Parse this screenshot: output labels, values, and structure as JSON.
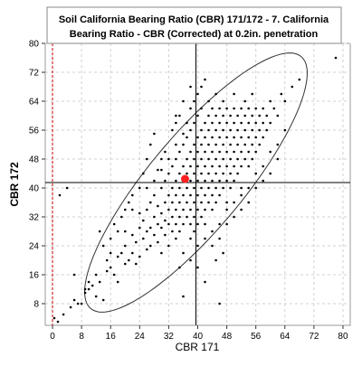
{
  "chart_data": {
    "type": "scatter",
    "title": "Soil California Bearing Ratio (CBR) 171/172 - 7. California Bearing Ratio - CBR (Corrected) at 0.2in. penetration",
    "title_lines": [
      "Soil California Bearing Ratio (CBR) 171/172 - 7. California",
      "Bearing Ratio - CBR (Corrected) at 0.2in. penetration"
    ],
    "xlabel": "CBR 171",
    "ylabel": "CBR 172",
    "xlim": [
      -2,
      82
    ],
    "ylim": [
      2,
      80
    ],
    "xticks": [
      0,
      8,
      16,
      24,
      32,
      40,
      48,
      56,
      64,
      72,
      80
    ],
    "yticks": [
      8,
      16,
      24,
      32,
      40,
      48,
      56,
      64,
      72,
      80
    ],
    "grid": true,
    "legend": "none",
    "mean_point": {
      "x": 36.5,
      "y": 42.5
    },
    "crosshair": {
      "x": 39.5,
      "y": 41.5
    },
    "reference_line_x": 0,
    "confidence_ellipse": {
      "center": [
        39.5,
        41.5
      ],
      "angle_deg": 47,
      "semi_major": 55,
      "semi_minor": 16
    },
    "points": [
      [
        0.5,
        4
      ],
      [
        1.5,
        3
      ],
      [
        3,
        5
      ],
      [
        5,
        7
      ],
      [
        6,
        9
      ],
      [
        7,
        8
      ],
      [
        8,
        8
      ],
      [
        9,
        11
      ],
      [
        10,
        12
      ],
      [
        11,
        13
      ],
      [
        12,
        10
      ],
      [
        13,
        14
      ],
      [
        14,
        9
      ],
      [
        15,
        17
      ],
      [
        16,
        18
      ],
      [
        17,
        16
      ],
      [
        18,
        21
      ],
      [
        18,
        14
      ],
      [
        19,
        22
      ],
      [
        20,
        19
      ],
      [
        20,
        24
      ],
      [
        21,
        20
      ],
      [
        22,
        22
      ],
      [
        22,
        27
      ],
      [
        23,
        25
      ],
      [
        23,
        19
      ],
      [
        24,
        21
      ],
      [
        24,
        29
      ],
      [
        24,
        33
      ],
      [
        25,
        26
      ],
      [
        25,
        31
      ],
      [
        26,
        23
      ],
      [
        26,
        34
      ],
      [
        26,
        28
      ],
      [
        27,
        29
      ],
      [
        27,
        24
      ],
      [
        27,
        36
      ],
      [
        28,
        32
      ],
      [
        28,
        27
      ],
      [
        28,
        38
      ],
      [
        29,
        30
      ],
      [
        29,
        35
      ],
      [
        29,
        25
      ],
      [
        30,
        33
      ],
      [
        30,
        40
      ],
      [
        30,
        29
      ],
      [
        30,
        22
      ],
      [
        31,
        36
      ],
      [
        31,
        31
      ],
      [
        31,
        42
      ],
      [
        31,
        27
      ],
      [
        32,
        34
      ],
      [
        32,
        38
      ],
      [
        32,
        30
      ],
      [
        32,
        44
      ],
      [
        32,
        24
      ],
      [
        33,
        36
      ],
      [
        33,
        40
      ],
      [
        33,
        32
      ],
      [
        33,
        28
      ],
      [
        33,
        46
      ],
      [
        34,
        38
      ],
      [
        34,
        34
      ],
      [
        34,
        42
      ],
      [
        34,
        30
      ],
      [
        34,
        48
      ],
      [
        34,
        26
      ],
      [
        35,
        36
      ],
      [
        35,
        40
      ],
      [
        35,
        44
      ],
      [
        35,
        32
      ],
      [
        35,
        50
      ],
      [
        35,
        28
      ],
      [
        36,
        38
      ],
      [
        36,
        42
      ],
      [
        36,
        34
      ],
      [
        36,
        46
      ],
      [
        36,
        30
      ],
      [
        36,
        52
      ],
      [
        36,
        22
      ],
      [
        37,
        40
      ],
      [
        37,
        44
      ],
      [
        37,
        36
      ],
      [
        37,
        48
      ],
      [
        37,
        32
      ],
      [
        37,
        54
      ],
      [
        38,
        38
      ],
      [
        38,
        42
      ],
      [
        38,
        46
      ],
      [
        38,
        34
      ],
      [
        38,
        50
      ],
      [
        38,
        30
      ],
      [
        38,
        56
      ],
      [
        38,
        26
      ],
      [
        39,
        40
      ],
      [
        39,
        44
      ],
      [
        39,
        36
      ],
      [
        39,
        48
      ],
      [
        39,
        52
      ],
      [
        39,
        32
      ],
      [
        39,
        58
      ],
      [
        39,
        28
      ],
      [
        40,
        38
      ],
      [
        40,
        42
      ],
      [
        40,
        46
      ],
      [
        40,
        50
      ],
      [
        40,
        34
      ],
      [
        40,
        54
      ],
      [
        40,
        30
      ],
      [
        40,
        60
      ],
      [
        40,
        24
      ],
      [
        41,
        40
      ],
      [
        41,
        44
      ],
      [
        41,
        48
      ],
      [
        41,
        36
      ],
      [
        41,
        52
      ],
      [
        41,
        32
      ],
      [
        41,
        56
      ],
      [
        41,
        62
      ],
      [
        42,
        42
      ],
      [
        42,
        46
      ],
      [
        42,
        38
      ],
      [
        42,
        50
      ],
      [
        42,
        34
      ],
      [
        42,
        54
      ],
      [
        42,
        58
      ],
      [
        42,
        30
      ],
      [
        43,
        44
      ],
      [
        43,
        40
      ],
      [
        43,
        48
      ],
      [
        43,
        52
      ],
      [
        43,
        36
      ],
      [
        43,
        56
      ],
      [
        43,
        60
      ],
      [
        43,
        64
      ],
      [
        44,
        42
      ],
      [
        44,
        46
      ],
      [
        44,
        50
      ],
      [
        44,
        38
      ],
      [
        44,
        54
      ],
      [
        44,
        34
      ],
      [
        44,
        58
      ],
      [
        44,
        62
      ],
      [
        45,
        44
      ],
      [
        45,
        48
      ],
      [
        45,
        40
      ],
      [
        45,
        52
      ],
      [
        45,
        56
      ],
      [
        45,
        36
      ],
      [
        45,
        60
      ],
      [
        45,
        66
      ],
      [
        46,
        46
      ],
      [
        46,
        50
      ],
      [
        46,
        42
      ],
      [
        46,
        54
      ],
      [
        46,
        38
      ],
      [
        46,
        58
      ],
      [
        46,
        62
      ],
      [
        47,
        48
      ],
      [
        47,
        44
      ],
      [
        47,
        52
      ],
      [
        47,
        56
      ],
      [
        47,
        40
      ],
      [
        47,
        60
      ],
      [
        47,
        64
      ],
      [
        48,
        46
      ],
      [
        48,
        50
      ],
      [
        48,
        54
      ],
      [
        48,
        42
      ],
      [
        48,
        58
      ],
      [
        48,
        36
      ],
      [
        48,
        62
      ],
      [
        49,
        48
      ],
      [
        49,
        52
      ],
      [
        49,
        44
      ],
      [
        49,
        56
      ],
      [
        49,
        60
      ],
      [
        49,
        40
      ],
      [
        50,
        50
      ],
      [
        50,
        46
      ],
      [
        50,
        54
      ],
      [
        50,
        58
      ],
      [
        50,
        42
      ],
      [
        50,
        62
      ],
      [
        50,
        66
      ],
      [
        51,
        52
      ],
      [
        51,
        48
      ],
      [
        51,
        56
      ],
      [
        51,
        44
      ],
      [
        51,
        60
      ],
      [
        52,
        50
      ],
      [
        52,
        54
      ],
      [
        52,
        46
      ],
      [
        52,
        58
      ],
      [
        52,
        62
      ],
      [
        52,
        40
      ],
      [
        53,
        52
      ],
      [
        53,
        56
      ],
      [
        53,
        48
      ],
      [
        53,
        60
      ],
      [
        53,
        64
      ],
      [
        54,
        54
      ],
      [
        54,
        50
      ],
      [
        54,
        58
      ],
      [
        54,
        46
      ],
      [
        54,
        62
      ],
      [
        55,
        56
      ],
      [
        55,
        52
      ],
      [
        55,
        60
      ],
      [
        55,
        48
      ],
      [
        55,
        66
      ],
      [
        56,
        54
      ],
      [
        56,
        58
      ],
      [
        56,
        50
      ],
      [
        56,
        62
      ],
      [
        57,
        56
      ],
      [
        57,
        60
      ],
      [
        57,
        52
      ],
      [
        58,
        58
      ],
      [
        58,
        54
      ],
      [
        58,
        62
      ],
      [
        59,
        60
      ],
      [
        59,
        56
      ],
      [
        60,
        58
      ],
      [
        60,
        64
      ],
      [
        61,
        62
      ],
      [
        62,
        60
      ],
      [
        63,
        66
      ],
      [
        64,
        64
      ],
      [
        66,
        68
      ],
      [
        68,
        70
      ],
      [
        78,
        76
      ],
      [
        20,
        28
      ],
      [
        22,
        34
      ],
      [
        24,
        40
      ],
      [
        25,
        44
      ],
      [
        26,
        48
      ],
      [
        27,
        52
      ],
      [
        28,
        55
      ],
      [
        30,
        48
      ],
      [
        29,
        45
      ],
      [
        31,
        50
      ],
      [
        33,
        56
      ],
      [
        34,
        60
      ],
      [
        26,
        40
      ],
      [
        28,
        42
      ],
      [
        30,
        45
      ],
      [
        32,
        48
      ],
      [
        34,
        52
      ],
      [
        36,
        55
      ],
      [
        37,
        58
      ],
      [
        38,
        62
      ],
      [
        39,
        64
      ],
      [
        40,
        66
      ],
      [
        41,
        68
      ],
      [
        38,
        68
      ],
      [
        42,
        70
      ],
      [
        36,
        64
      ],
      [
        35,
        60
      ],
      [
        34,
        58
      ],
      [
        44,
        24
      ],
      [
        46,
        26
      ],
      [
        48,
        30
      ],
      [
        50,
        32
      ],
      [
        52,
        34
      ],
      [
        54,
        36
      ],
      [
        56,
        40
      ],
      [
        58,
        42
      ],
      [
        60,
        44
      ],
      [
        42,
        26
      ],
      [
        44,
        28
      ],
      [
        46,
        30
      ],
      [
        48,
        34
      ],
      [
        50,
        36
      ],
      [
        52,
        38
      ],
      [
        54,
        40
      ],
      [
        56,
        44
      ],
      [
        58,
        46
      ],
      [
        60,
        50
      ],
      [
        62,
        52
      ],
      [
        62,
        48
      ],
      [
        64,
        56
      ],
      [
        45,
        20
      ],
      [
        47,
        22
      ],
      [
        40,
        18
      ],
      [
        42,
        14
      ],
      [
        36,
        10
      ],
      [
        46,
        8
      ],
      [
        38,
        20
      ],
      [
        35,
        18
      ],
      [
        14,
        24
      ],
      [
        16,
        26
      ],
      [
        17,
        30
      ],
      [
        18,
        28
      ],
      [
        19,
        32
      ],
      [
        20,
        34
      ],
      [
        21,
        36
      ],
      [
        22,
        38
      ],
      [
        15,
        20
      ],
      [
        16,
        22
      ],
      [
        13,
        28
      ],
      [
        12,
        16
      ],
      [
        10,
        14
      ],
      [
        4,
        40
      ],
      [
        2,
        38
      ],
      [
        6,
        16
      ],
      [
        9,
        12
      ]
    ]
  }
}
